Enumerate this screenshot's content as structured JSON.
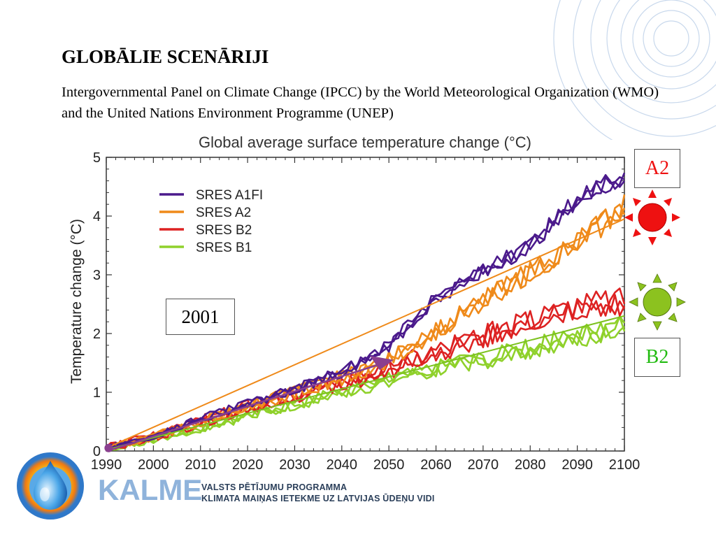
{
  "slide": {
    "title": "GLOBĀLIE SCENĀRIJI",
    "subtitle": "Intergovernmental Panel on Climate Change (IPCC) by the World Meteorological Organization (WMO) and the United Nations Environment Programme (UNEP)"
  },
  "callouts": {
    "a2": "A2",
    "b2": "B2",
    "year": "2001",
    "a2_color": "#ee1111",
    "b2_color": "#22bb11"
  },
  "icons": {
    "hot_sun": "red-sun-icon",
    "mild_sun": "green-sun-icon",
    "logo": "water-drop-logo-icon"
  },
  "footer": {
    "brand": "KALME",
    "program_line1": "VALSTS PĒTĪJUMU PROGRAMMA",
    "program_line2": "KLIMATA MAIŅAS IETEKME UZ LATVIJAS ŪDEŅU VIDI"
  },
  "chart_data": {
    "type": "line",
    "title": "Global average surface temperature change (°C)",
    "xlabel": "",
    "ylabel": "Temperature change (°C)",
    "xlim": [
      1990,
      2100
    ],
    "ylim": [
      0,
      5
    ],
    "x_ticks": [
      1990,
      2000,
      2010,
      2020,
      2030,
      2040,
      2050,
      2060,
      2070,
      2080,
      2090,
      2100
    ],
    "y_ticks": [
      0,
      1,
      2,
      3,
      4,
      5
    ],
    "legend_position": "top-left",
    "grid": false,
    "x": [
      1990,
      2000,
      2010,
      2020,
      2030,
      2040,
      2050,
      2060,
      2070,
      2080,
      2090,
      2100
    ],
    "series": [
      {
        "name": "SRES A1FI",
        "color": "#4b1a8c",
        "values": [
          0.05,
          0.25,
          0.55,
          0.8,
          1.05,
          1.35,
          1.8,
          2.6,
          3.05,
          3.5,
          4.3,
          4.7
        ]
      },
      {
        "name": "SRES A2",
        "color": "#ef8a1a",
        "values": [
          0.05,
          0.25,
          0.5,
          0.75,
          1.0,
          1.25,
          1.55,
          2.05,
          2.55,
          3.05,
          3.55,
          4.15
        ]
      },
      {
        "name": "SRES B2",
        "color": "#dd2222",
        "values": [
          0.05,
          0.25,
          0.5,
          0.75,
          0.95,
          1.15,
          1.4,
          1.7,
          1.95,
          2.2,
          2.45,
          2.55
        ]
      },
      {
        "name": "SRES B1",
        "color": "#8fd12b",
        "values": [
          0.05,
          0.2,
          0.4,
          0.6,
          0.8,
          1.0,
          1.2,
          1.4,
          1.55,
          1.75,
          1.95,
          2.15
        ]
      }
    ]
  }
}
